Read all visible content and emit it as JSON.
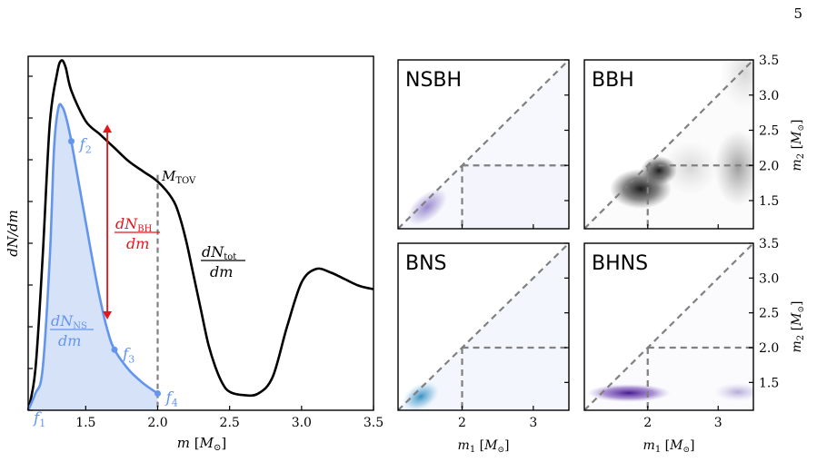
{
  "page_number": "5",
  "colors": {
    "total": "#000000",
    "ns_line": "#6495ED",
    "ns_fill": "#d5e2f7",
    "bh_arrow": "#e8141b",
    "mtov_line": "#808080",
    "panel_diag": "#808080"
  },
  "chart_data": [
    {
      "type": "line",
      "panel": "mass-distribution",
      "xlabel": "m [M⊙]",
      "ylabel": "dN/dm",
      "xlim": [
        1.1,
        3.5
      ],
      "xticks": [
        "1.5",
        "2.0",
        "2.5",
        "3.0",
        "3.5"
      ],
      "xtick_values": [
        1.5,
        2.0,
        2.5,
        3.0,
        3.5
      ],
      "ylim": [
        0,
        1
      ],
      "series": [
        {
          "name": "dN_tot/dm",
          "x": [
            1.1,
            1.15,
            1.2,
            1.25,
            1.3,
            1.33,
            1.36,
            1.4,
            1.5,
            1.6,
            1.7,
            1.8,
            1.9,
            2.0,
            2.1,
            2.15,
            2.2,
            2.25,
            2.3,
            2.35,
            2.4,
            2.45,
            2.5,
            2.6,
            2.7,
            2.8,
            2.9,
            3.0,
            3.1,
            3.2,
            3.3,
            3.4,
            3.5
          ],
          "y": [
            0,
            0.12,
            0.45,
            0.85,
            1.0,
            1.04,
            1.02,
            0.95,
            0.86,
            0.82,
            0.78,
            0.74,
            0.71,
            0.68,
            0.63,
            0.58,
            0.5,
            0.4,
            0.3,
            0.2,
            0.13,
            0.08,
            0.055,
            0.045,
            0.05,
            0.1,
            0.25,
            0.38,
            0.42,
            0.41,
            0.39,
            0.37,
            0.36
          ]
        },
        {
          "name": "dN_NS/dm",
          "x": [
            1.1,
            1.15,
            1.2,
            1.25,
            1.28,
            1.31,
            1.34,
            1.37,
            1.4,
            1.45,
            1.5,
            1.55,
            1.6,
            1.65,
            1.7,
            1.8,
            1.9,
            2.0
          ],
          "y": [
            0,
            0.05,
            0.12,
            0.45,
            0.78,
            0.9,
            0.9,
            0.86,
            0.8,
            0.68,
            0.56,
            0.44,
            0.33,
            0.24,
            0.18,
            0.12,
            0.08,
            0.05
          ]
        }
      ],
      "markers": [
        {
          "label": "f1",
          "x": 1.1,
          "y": 0.0
        },
        {
          "label": "f2",
          "x": 1.4,
          "y": 0.8
        },
        {
          "label": "f3",
          "x": 1.7,
          "y": 0.18
        },
        {
          "label": "f4",
          "x": 2.0,
          "y": 0.05
        }
      ],
      "arrow": {
        "x": 1.65,
        "y_from": 0.27,
        "y_to": 0.85,
        "label": "dN_BH/dm"
      },
      "vline": {
        "x": 2.0,
        "y_to": 0.7,
        "label": "M_TOV"
      }
    },
    {
      "type": "heatmap",
      "panels": [
        {
          "title": "NSBH"
        },
        {
          "title": "BBH"
        },
        {
          "title": "BNS"
        },
        {
          "title": "BHNS"
        }
      ],
      "xlabel": "m₁ [M⊙]",
      "ylabel": "m₂ [M⊙]",
      "xlim": [
        1.1,
        3.5
      ],
      "ylim": [
        1.1,
        3.5
      ],
      "xticks": [
        "2",
        "3"
      ],
      "xtick_values": [
        2,
        3
      ],
      "yticks": [
        "1.5",
        "2.0",
        "2.5",
        "3.0",
        "3.5"
      ],
      "ytick_values": [
        1.5,
        2.0,
        2.5,
        3.0,
        3.5
      ],
      "divider": 2.0
    }
  ]
}
